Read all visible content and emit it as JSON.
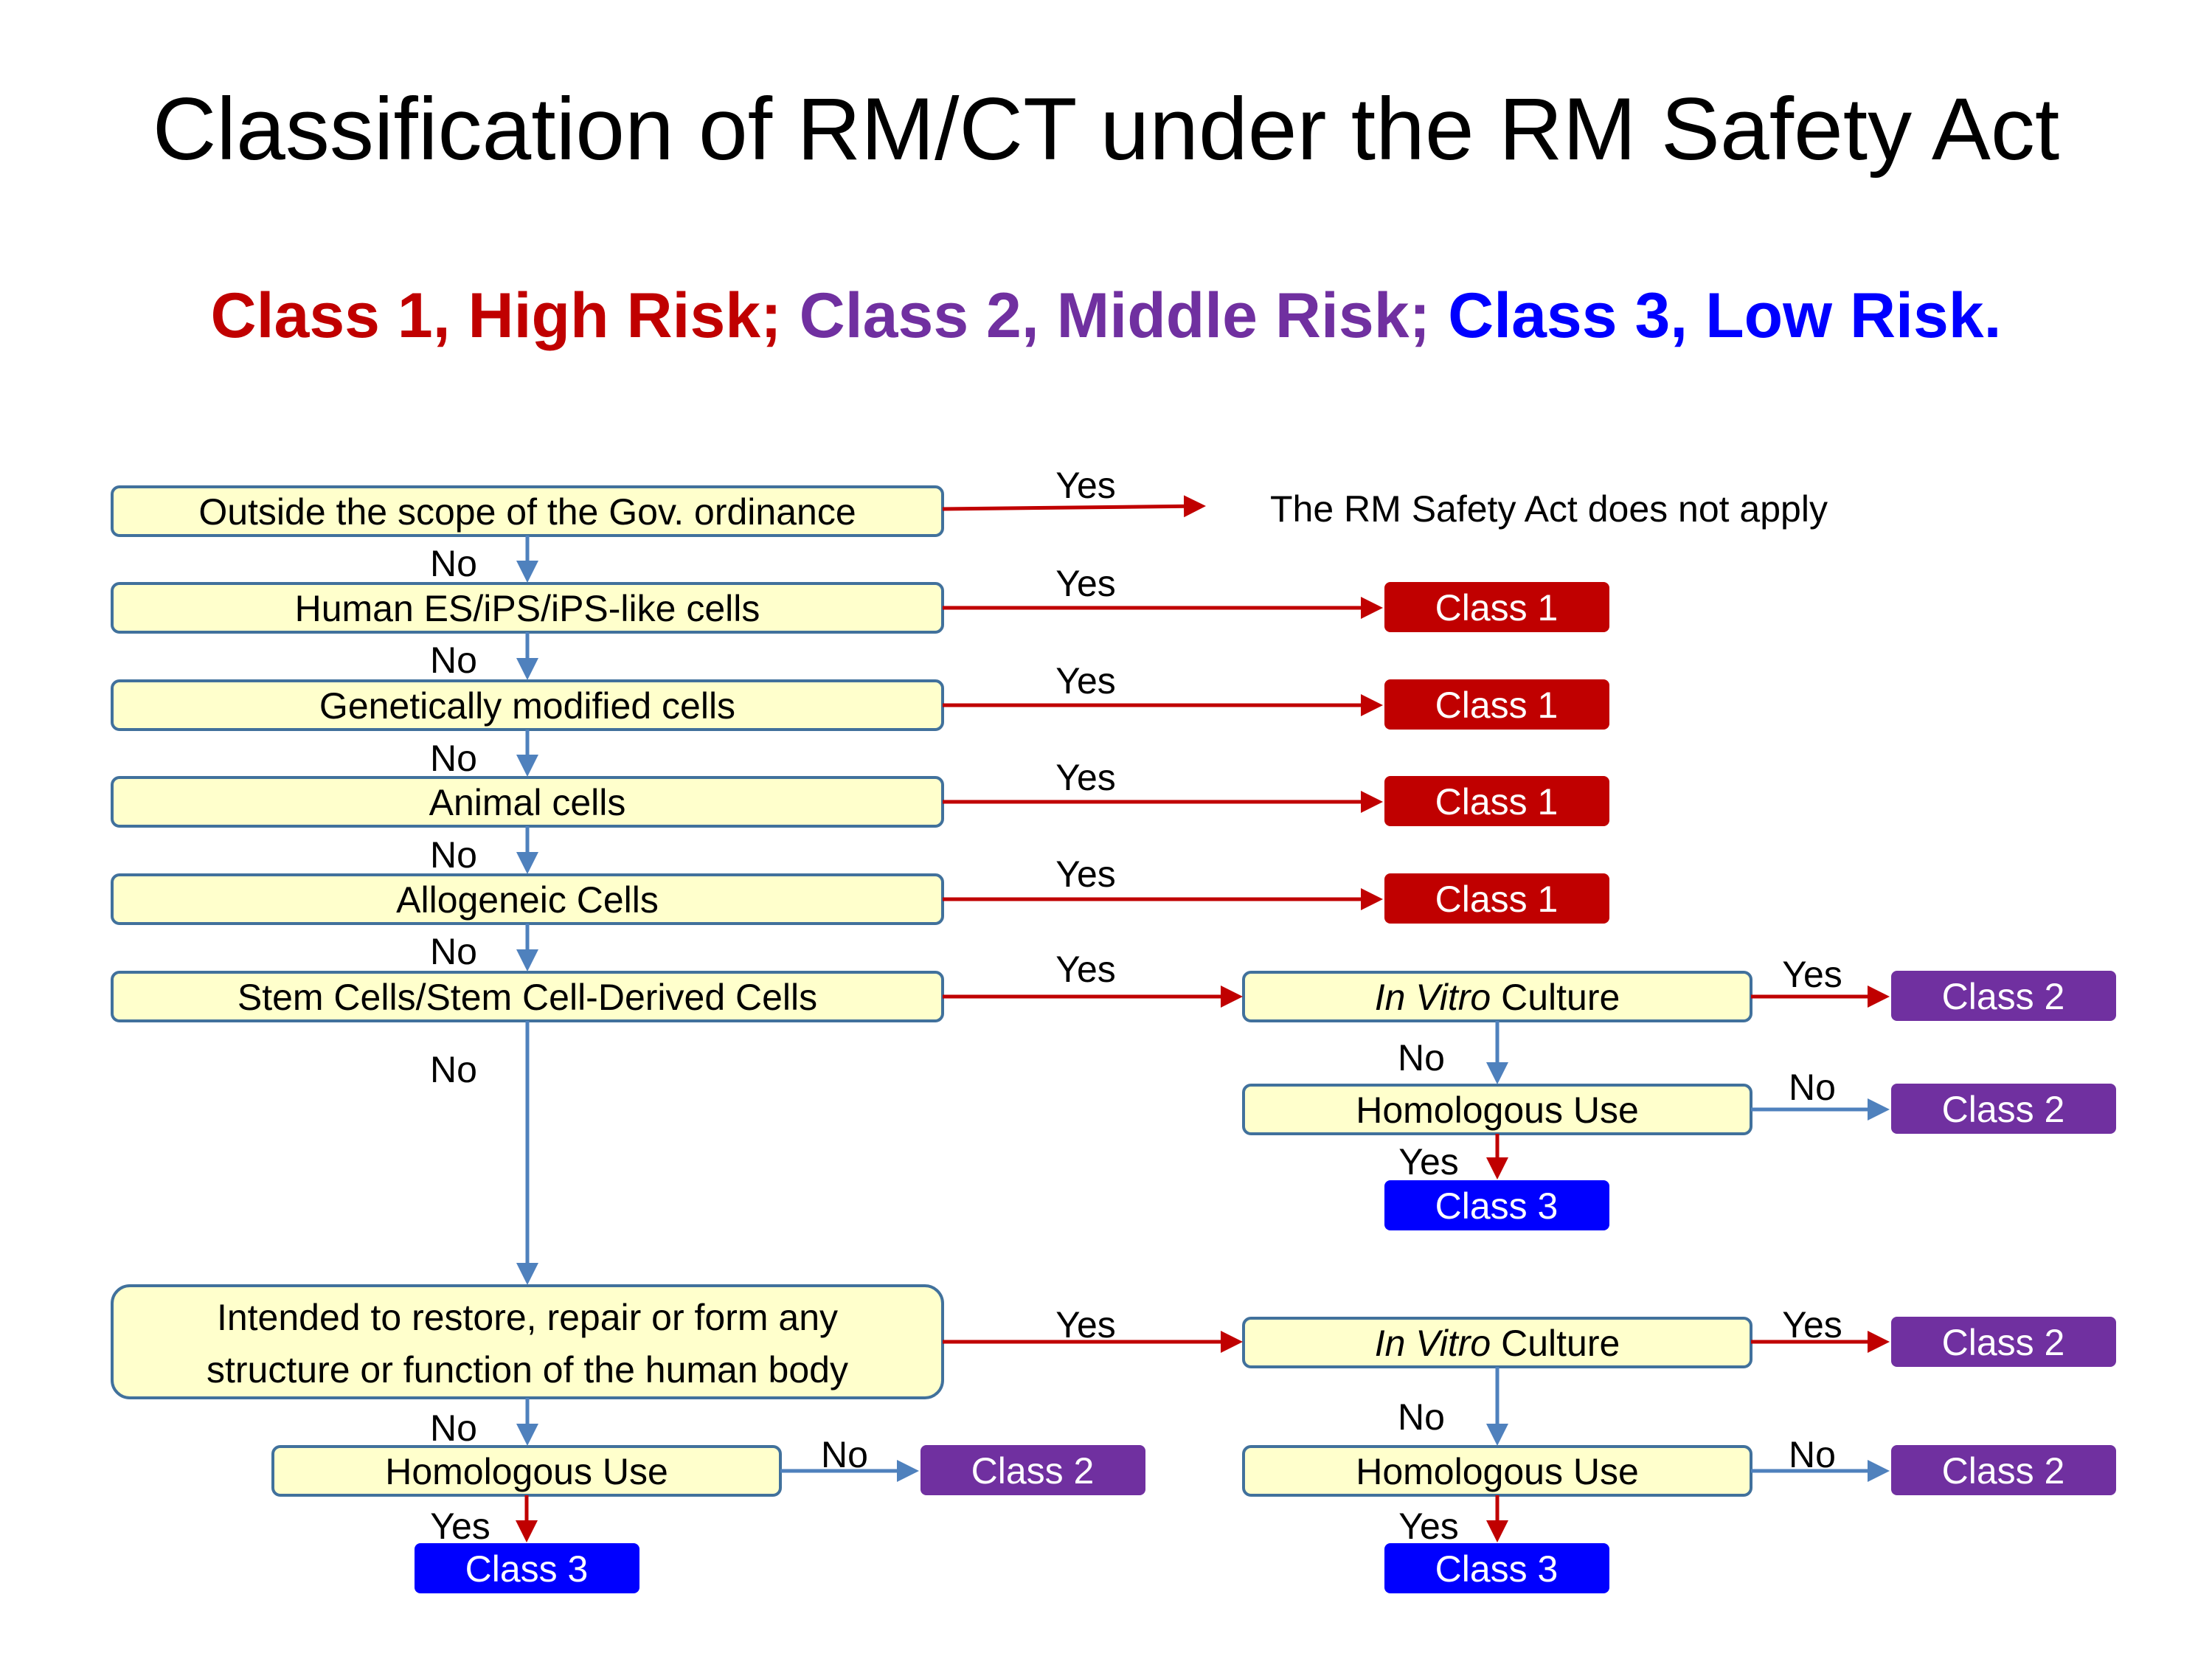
{
  "title": "Classification of RM/CT under the RM Safety Act",
  "legend": {
    "class1": "Class 1, High Risk;",
    "class2": "Class 2, Middle Risk;",
    "class3": "Class 3, Low Risk.",
    "colors": {
      "class1": "#C00000",
      "class2": "#7030A0",
      "class3": "#0000FF"
    }
  },
  "colors": {
    "box_fill": "#FFFFCC",
    "box_border": "#41719C",
    "yes_arrow": "#C00000",
    "no_arrow": "#4F81BD",
    "class1": "#C00000",
    "class2": "#7030A0",
    "class3": "#0000FF"
  },
  "not_apply_note": "The RM Safety Act does not apply",
  "edge_labels": {
    "yes": "Yes",
    "no": "No"
  },
  "decisions": {
    "q1": "Outside the scope of the Gov. ordinance",
    "q2": "Human ES/iPS/iPS-like cells",
    "q3": "Genetically modified cells",
    "q4": "Animal cells",
    "q5": "Allogeneic  Cells",
    "q6": "Stem  Cells/Stem Cell-Derived Cells",
    "q7_line1": "Intended to restore, repair or form any",
    "q7_line2": "structure or function of the human body",
    "in_vitro_italic": "In Vitro",
    "in_vitro_rest": " Culture",
    "homologous_use": "Homologous Use"
  },
  "classes": {
    "class1": "Class 1",
    "class2": "Class 2",
    "class3": "Class 3"
  }
}
